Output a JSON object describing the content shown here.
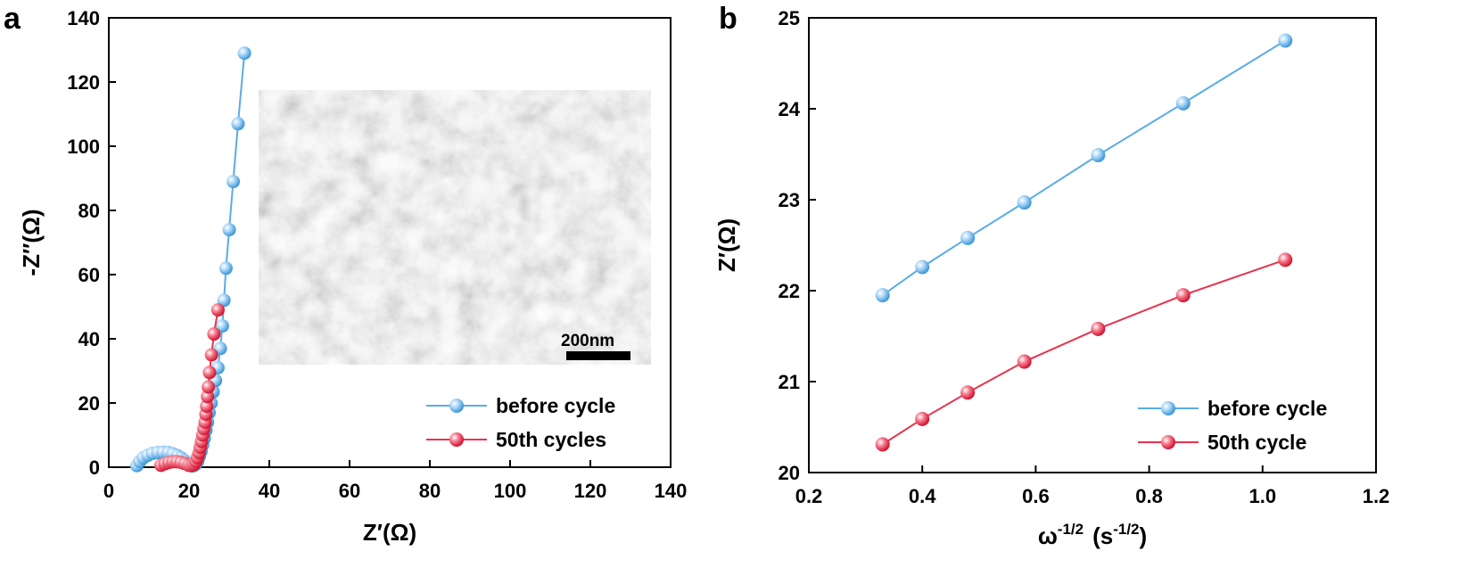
{
  "chart_data": [
    {
      "type": "scatter",
      "panel_label": "a",
      "xlabel": "Z′(Ω)",
      "ylabel": "-Z′′(Ω)",
      "xlim": [
        0,
        140
      ],
      "ylim": [
        0,
        140
      ],
      "xticks": [
        0,
        20,
        40,
        60,
        80,
        100,
        120,
        140
      ],
      "yticks": [
        0,
        20,
        40,
        60,
        80,
        100,
        120,
        140
      ],
      "grid": false,
      "legend_position": "bottom-right",
      "series": [
        {
          "name": "before cycle",
          "color": "#5aace6",
          "points": [
            [
              7,
              0.5
            ],
            [
              7.7,
              1.8
            ],
            [
              8.6,
              2.9
            ],
            [
              9.7,
              3.7
            ],
            [
              10.9,
              4.3
            ],
            [
              12.2,
              4.6
            ],
            [
              13.5,
              4.7
            ],
            [
              14.8,
              4.6
            ],
            [
              16,
              4.2
            ],
            [
              17.1,
              3.6
            ],
            [
              18,
              2.9
            ],
            [
              18.8,
              2.1
            ],
            [
              19.5,
              1.3
            ],
            [
              20.1,
              0.7
            ],
            [
              20.7,
              0.4
            ],
            [
              21.2,
              0.5
            ],
            [
              21.7,
              1.0
            ],
            [
              22.2,
              2.0
            ],
            [
              22.6,
              3.5
            ],
            [
              23.0,
              5.0
            ],
            [
              23.4,
              7.0
            ],
            [
              23.8,
              9.0
            ],
            [
              24.2,
              11.5
            ],
            [
              24.6,
              14.0
            ],
            [
              25.0,
              17.0
            ],
            [
              25.5,
              20.0
            ],
            [
              26.0,
              23.5
            ],
            [
              26.6,
              27.0
            ],
            [
              27.2,
              31.0
            ],
            [
              27.8,
              37.0
            ],
            [
              28.3,
              44.0
            ],
            [
              28.7,
              52.0
            ],
            [
              29.2,
              62.0
            ],
            [
              30.0,
              74.0
            ],
            [
              31.0,
              89.0
            ],
            [
              32.2,
              107.0
            ],
            [
              33.8,
              129.0
            ]
          ]
        },
        {
          "name": "50th cycles",
          "color": "#e8334f",
          "points": [
            [
              13,
              0.6
            ],
            [
              14,
              1.1
            ],
            [
              15,
              1.5
            ],
            [
              16,
              1.7
            ],
            [
              17,
              1.7
            ],
            [
              18,
              1.5
            ],
            [
              19,
              1.1
            ],
            [
              19.9,
              0.6
            ],
            [
              20.6,
              0.5
            ],
            [
              21.2,
              0.9
            ],
            [
              21.7,
              1.8
            ],
            [
              22.1,
              3.0
            ],
            [
              22.5,
              4.5
            ],
            [
              22.8,
              6.2
            ],
            [
              23.1,
              8.0
            ],
            [
              23.4,
              10.0
            ],
            [
              23.7,
              12.0
            ],
            [
              24.0,
              14.0
            ],
            [
              24.2,
              16.5
            ],
            [
              24.4,
              19.0
            ],
            [
              24.6,
              22.0
            ],
            [
              24.8,
              25.0
            ],
            [
              25.1,
              29.5
            ],
            [
              25.6,
              35.0
            ],
            [
              26.2,
              41.5
            ],
            [
              27.2,
              49.0
            ]
          ]
        }
      ],
      "inset": {
        "description_text": "200nm"
      }
    },
    {
      "type": "line",
      "panel_label": "b",
      "xlabel": "ω",
      "xlabel_sup": "-1/2",
      "xlabel_unit": "(s",
      "xlabel_unit_sup": "-1/2",
      "xlabel_unit_close": ")",
      "ylabel": "Z′(Ω)",
      "xlim": [
        0.2,
        1.2
      ],
      "ylim": [
        20,
        25
      ],
      "xticks": [
        0.2,
        0.4,
        0.6,
        0.8,
        1.0,
        1.2
      ],
      "yticks": [
        20,
        21,
        22,
        23,
        24,
        25
      ],
      "grid": false,
      "legend_position": "bottom-right",
      "x": [
        0.33,
        0.4,
        0.48,
        0.58,
        0.71,
        0.86,
        1.04
      ],
      "series": [
        {
          "name": "before cycle",
          "color": "#5aace6",
          "values": [
            21.95,
            22.26,
            22.58,
            22.97,
            23.49,
            24.06,
            24.75
          ]
        },
        {
          "name": "50th cycle",
          "color": "#e8334f",
          "values": [
            20.31,
            20.59,
            20.88,
            21.22,
            21.58,
            21.95,
            22.34
          ]
        }
      ]
    }
  ]
}
